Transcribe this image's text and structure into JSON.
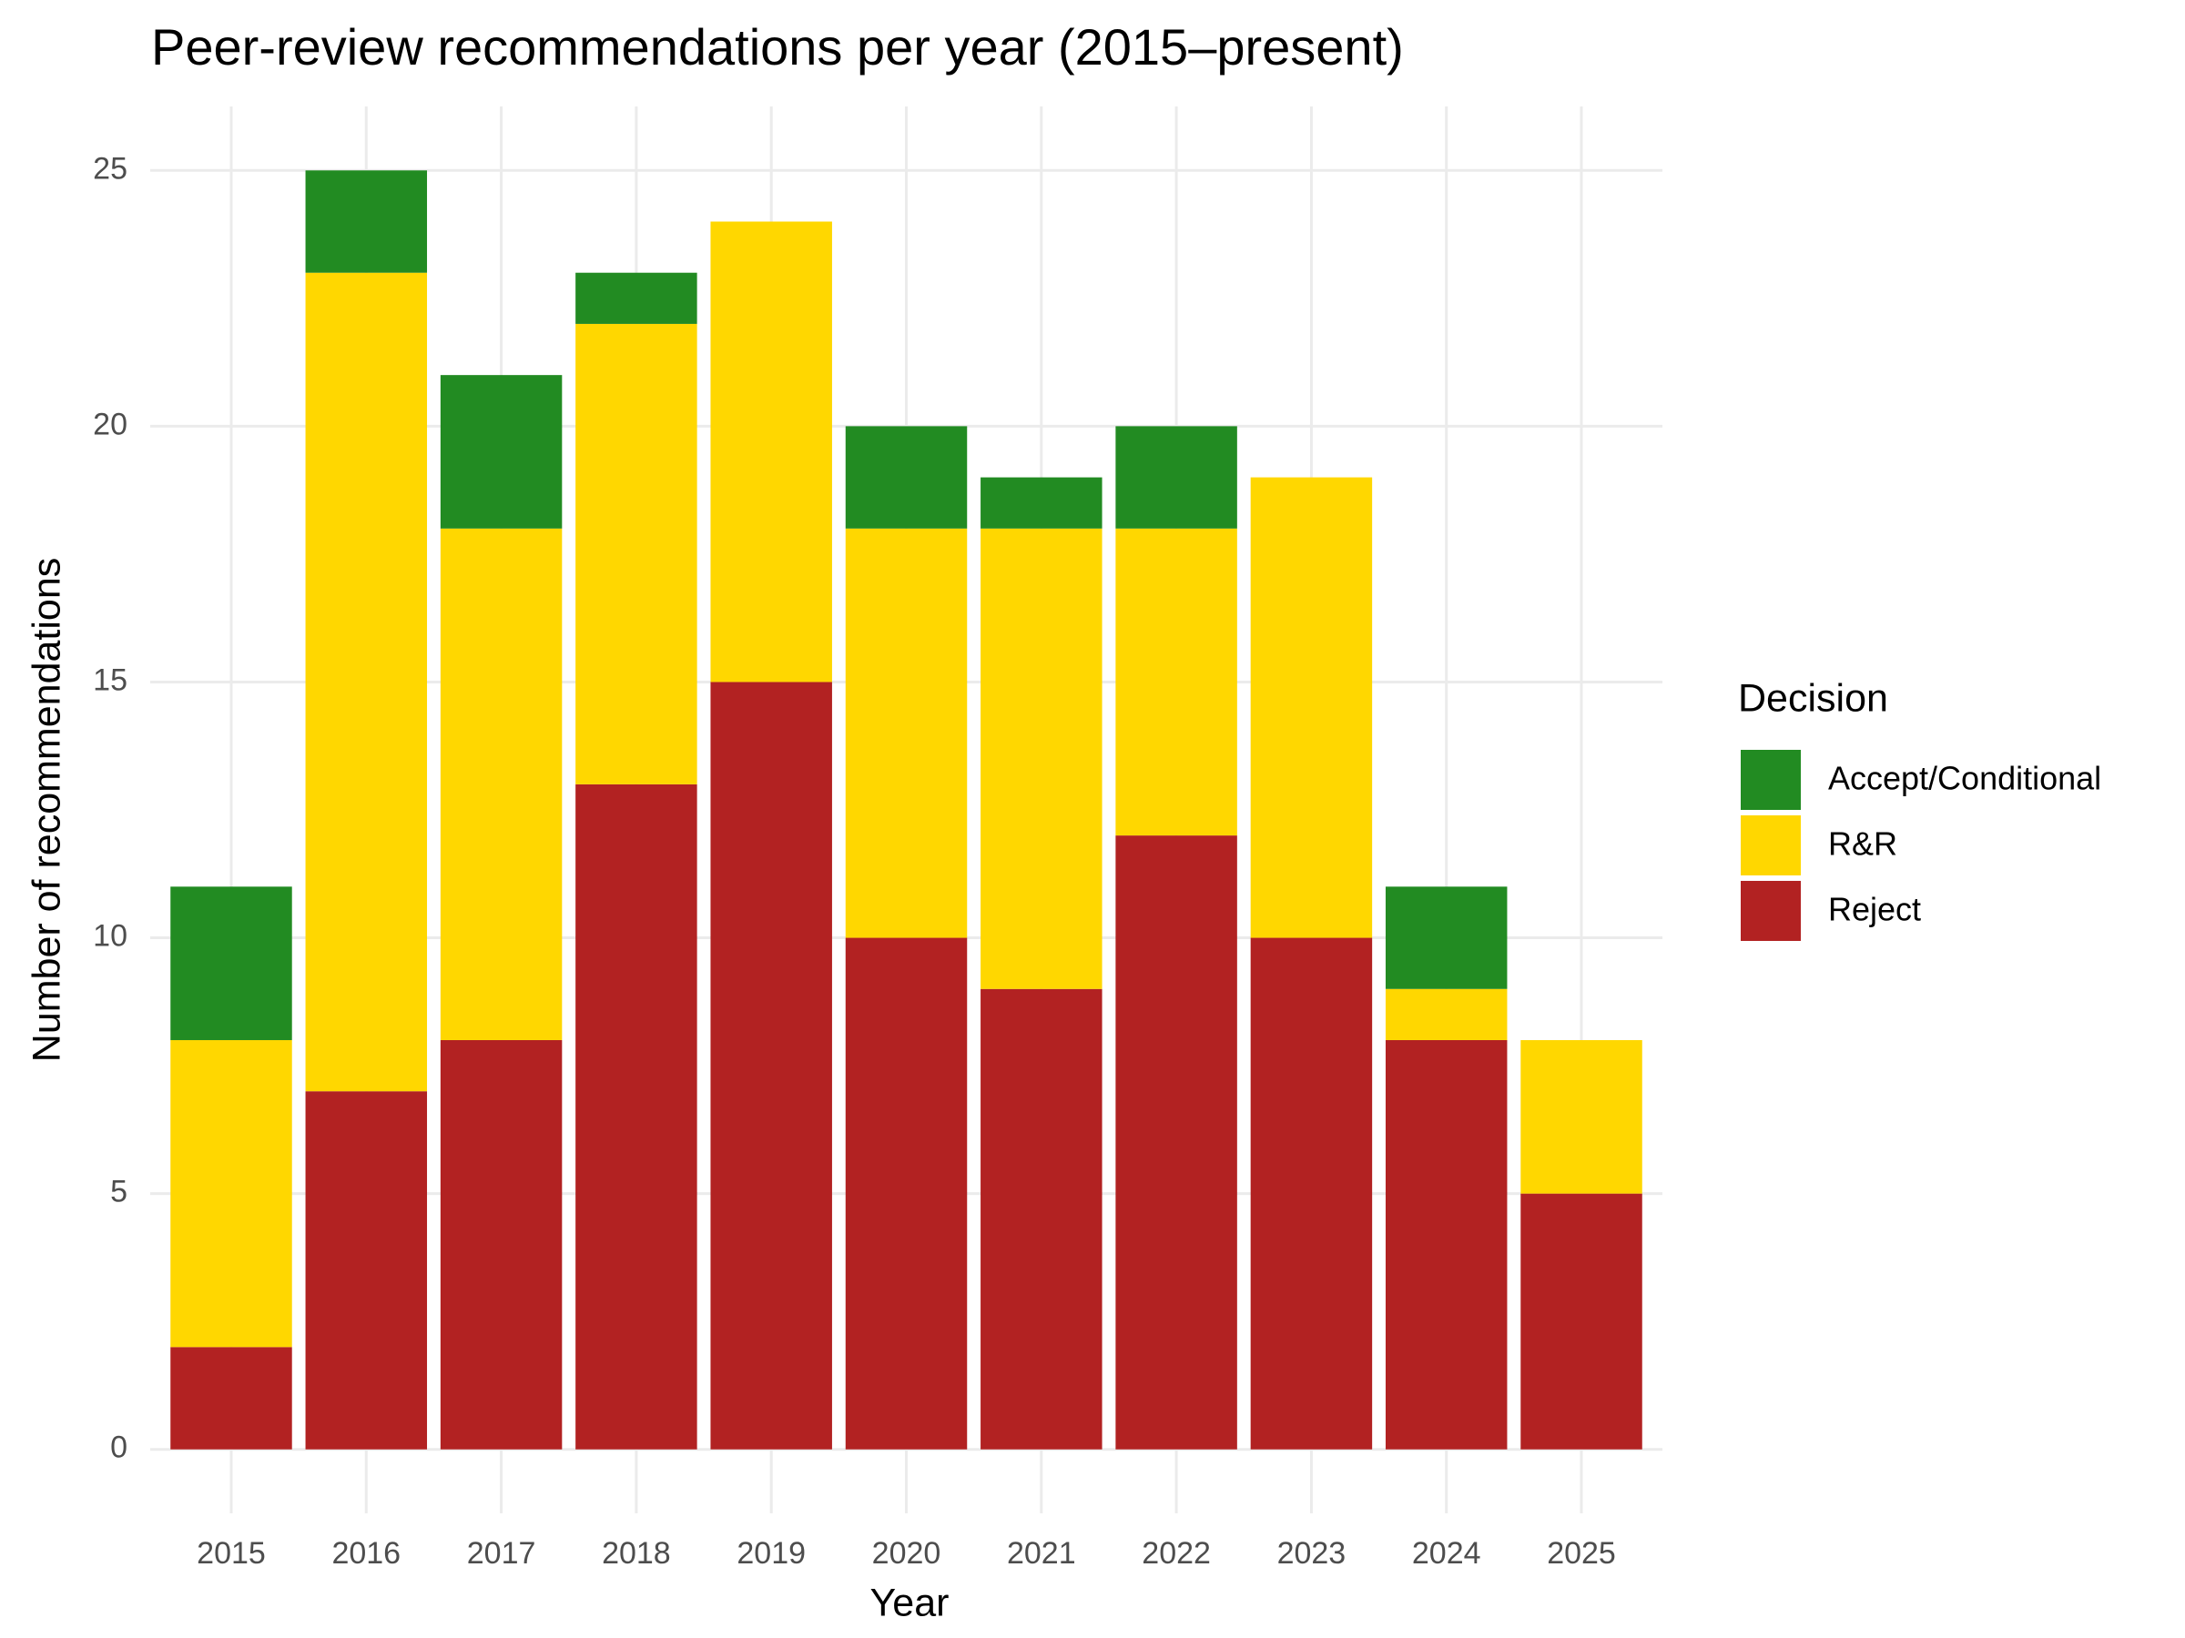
{
  "chart_data": {
    "type": "stacked_bar",
    "title": "Peer-review recommendations per year (2015–present)",
    "x_label": "Year",
    "y_label": "Number of recommendations",
    "legend_title": "Decision",
    "categories": [
      "2015",
      "2016",
      "2017",
      "2018",
      "2019",
      "2020",
      "2021",
      "2022",
      "2023",
      "2024",
      "2025"
    ],
    "series": [
      {
        "name": "Accept/Conditional",
        "color": "#228b22",
        "values": [
          3,
          2,
          3,
          1,
          0,
          2,
          1,
          2,
          0,
          2,
          0
        ]
      },
      {
        "name": "R&R",
        "color": "#ffd700",
        "values": [
          6,
          16,
          10,
          9,
          9,
          8,
          9,
          6,
          9,
          1,
          3
        ]
      },
      {
        "name": "Reject",
        "color": "#b22222",
        "values": [
          2,
          7,
          8,
          13,
          15,
          10,
          9,
          12,
          10,
          8,
          5
        ]
      }
    ],
    "ylim": [
      -1.25,
      26.25
    ],
    "yticks": [
      0,
      5,
      10,
      15,
      20,
      25
    ],
    "grid": true,
    "legend": "right"
  }
}
